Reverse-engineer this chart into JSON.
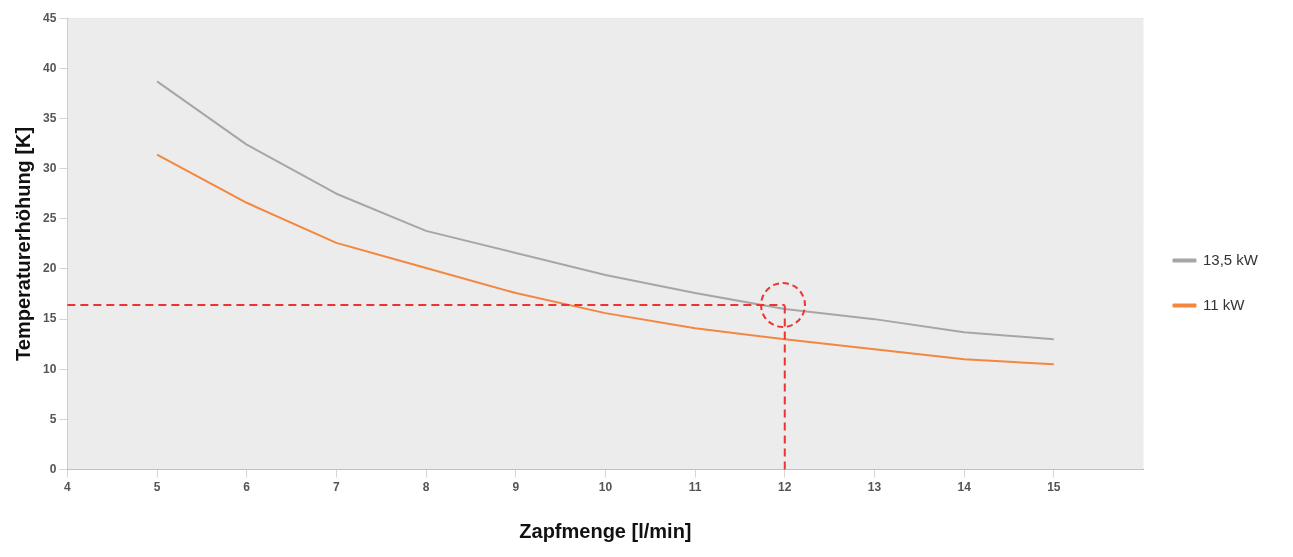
{
  "chart_data": {
    "type": "line",
    "xlabel": "Zapfmenge [l/min]",
    "ylabel": "Temperaturerhöhung [K]",
    "x": [
      5,
      6,
      7,
      8,
      9,
      10,
      11,
      12,
      13,
      14,
      15
    ],
    "series": [
      {
        "name": "13,5 kW",
        "color": "#a6a6a6",
        "values": [
          38.7,
          32.4,
          27.5,
          23.8,
          21.6,
          19.4,
          17.6,
          16.0,
          15.0,
          13.7,
          13.0
        ]
      },
      {
        "name": "11 kW",
        "color": "#f4873f",
        "values": [
          31.4,
          26.6,
          22.6,
          20.1,
          17.6,
          15.6,
          14.1,
          13.0,
          12.0,
          11.0,
          10.5
        ]
      }
    ],
    "xlim": [
      4,
      16
    ],
    "xticks": [
      4,
      5,
      6,
      7,
      8,
      9,
      10,
      11,
      12,
      13,
      14,
      15
    ],
    "ylim": [
      0,
      45
    ],
    "yticks": [
      0,
      5,
      10,
      15,
      20,
      25,
      30,
      35,
      40,
      45
    ],
    "ref_lines": [
      {
        "axis": "y",
        "value": 16.4,
        "color": "#ee3333",
        "line_style": "dashed"
      },
      {
        "axis": "x",
        "value": 12,
        "color": "#ee3333",
        "line_style": "dashed"
      }
    ],
    "grid": true,
    "legend": "right",
    "marker": "none",
    "line_style": "solid"
  }
}
